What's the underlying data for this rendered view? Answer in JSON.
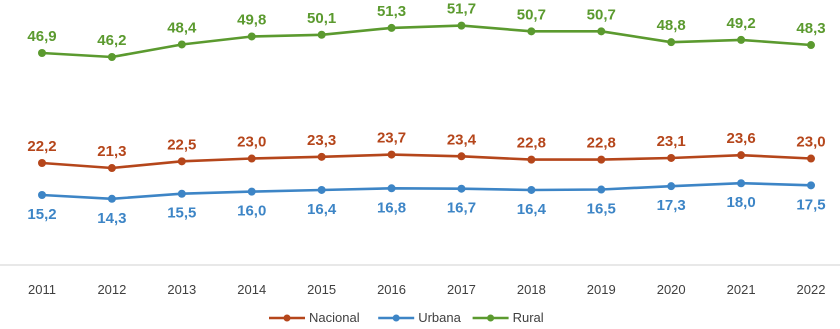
{
  "chart_data": {
    "type": "line",
    "title": "",
    "xlabel": "",
    "ylabel": "",
    "x": [
      "2011",
      "2012",
      "2013",
      "2014",
      "2015",
      "2016",
      "2017",
      "2018",
      "2019",
      "2020",
      "2021",
      "2022"
    ],
    "ylim": [
      10,
      55
    ],
    "grid": false,
    "legend_position": "bottom",
    "series": [
      {
        "name": "Nacional",
        "color": "#B5461B",
        "values": [
          22.2,
          21.3,
          22.5,
          23.0,
          23.3,
          23.7,
          23.4,
          22.8,
          22.8,
          23.1,
          23.6,
          23.0
        ],
        "labels": [
          "22,2",
          "21,3",
          "22,5",
          "23,0",
          "23,3",
          "23,7",
          "23,4",
          "22,8",
          "22,8",
          "23,1",
          "23,6",
          "23,0"
        ],
        "label_position": "above"
      },
      {
        "name": "Urbana",
        "color": "#3D85C6",
        "values": [
          15.2,
          14.3,
          15.5,
          16.0,
          16.4,
          16.8,
          16.7,
          16.4,
          16.5,
          17.3,
          18.0,
          17.5
        ],
        "labels": [
          "15,2",
          "14,3",
          "15,5",
          "16,0",
          "16,4",
          "16,8",
          "16,7",
          "16,4",
          "16,5",
          "17,3",
          "18,0",
          "17,5"
        ],
        "label_position": "below"
      },
      {
        "name": "Rural",
        "color": "#5B9A2F",
        "values": [
          46.9,
          46.2,
          48.4,
          49.8,
          50.1,
          51.3,
          51.7,
          50.7,
          50.7,
          48.8,
          49.2,
          48.3
        ],
        "labels": [
          "46,9",
          "46,2",
          "48,4",
          "49,8",
          "50,1",
          "51,3",
          "51,7",
          "50,7",
          "50,7",
          "48,8",
          "49,2",
          "48,3"
        ],
        "label_position": "above"
      }
    ]
  }
}
